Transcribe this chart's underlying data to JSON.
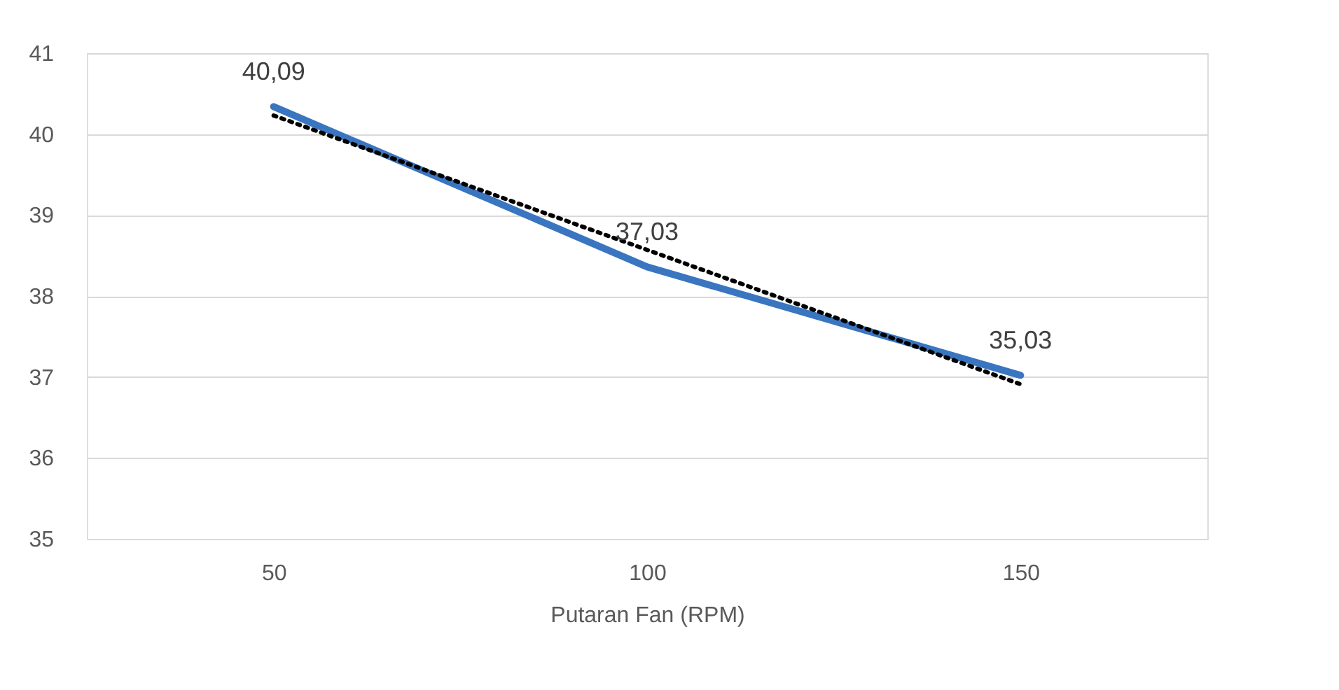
{
  "chart_data": {
    "type": "line",
    "xlabel": "Putaran Fan (RPM)",
    "categories": [
      "50",
      "100",
      "150"
    ],
    "series": [
      {
        "color": "#3a75c0",
        "values": [
          40.34,
          38.36,
          37.02
        ]
      },
      {
        "type": "line",
        "color": "#000000",
        "line_style": "dotted",
        "x": [
          "50",
          "100",
          "150"
        ],
        "values": [
          40.23,
          38.57,
          36.91
        ]
      }
    ],
    "annotations": [
      {
        "text": "40,09",
        "x": "50",
        "y": 40.34
      },
      {
        "text": "37,03",
        "x": "100",
        "y": 38.36
      },
      {
        "text": "35,03",
        "x": "150",
        "y": 37.02
      }
    ],
    "ylim": [
      35,
      41
    ],
    "yticks": [
      35,
      36,
      37,
      38,
      39,
      40,
      41
    ],
    "grid": "y"
  }
}
